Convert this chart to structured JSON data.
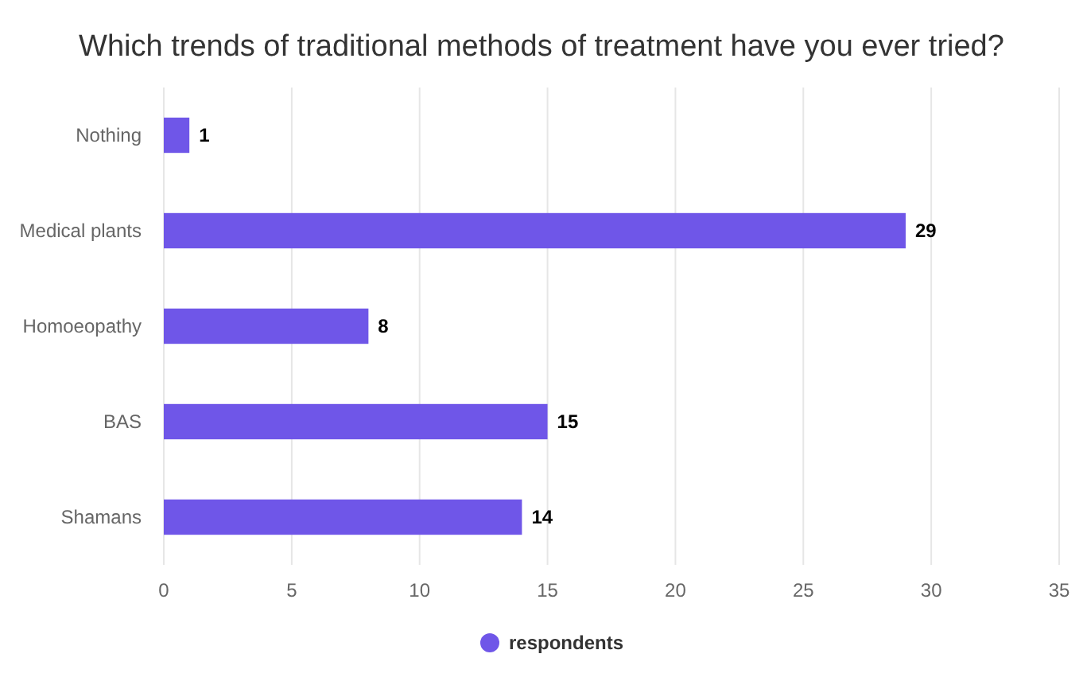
{
  "chart_data": {
    "type": "bar",
    "orientation": "horizontal",
    "title": "Which trends of traditional methods of treatment have you ever tried?",
    "categories": [
      "Nothing",
      "Medical plants",
      "Homoeopathy",
      "BAS",
      "Shamans"
    ],
    "series": [
      {
        "name": "respondents",
        "color": "#6f56e8",
        "values": [
          1,
          29,
          8,
          15,
          14
        ]
      }
    ],
    "xlim": [
      0,
      35
    ],
    "xticks": [
      0,
      5,
      10,
      15,
      20,
      25,
      30,
      35
    ],
    "grid": "x",
    "legend": "bottom",
    "data_labels": true
  }
}
